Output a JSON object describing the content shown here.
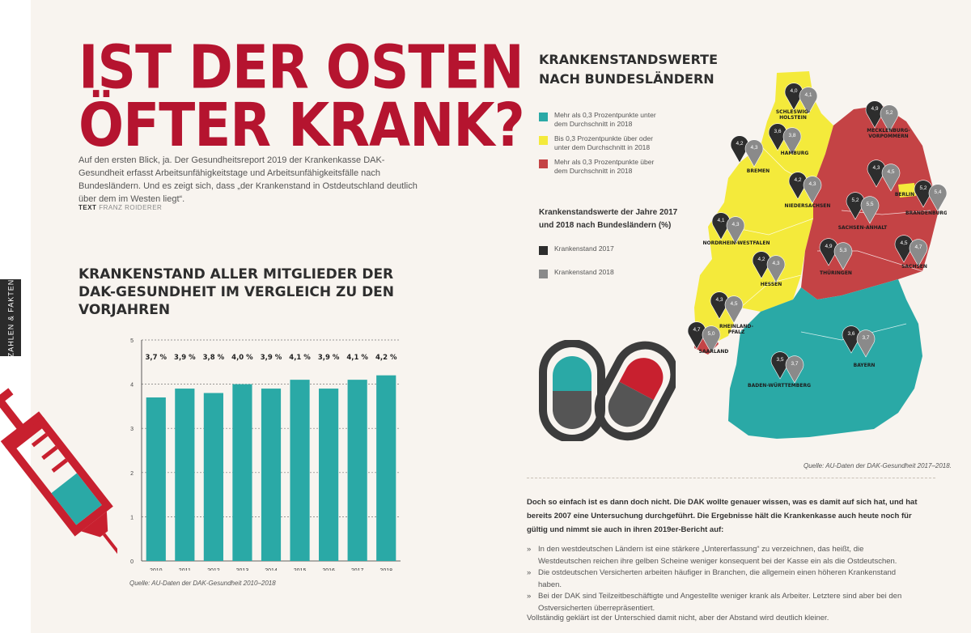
{
  "side_tab": "ZAHLEN & FAKTEN",
  "headline": {
    "line1": "IST DER OSTEN",
    "line2": "ÖFTER KRANK?"
  },
  "intro": "Auf den ersten Blick, ja. Der Gesundheitsreport 2019 der Krankenkasse DAK-Gesundheit erfasst Arbeitsunfähigkeitstage und Arbeitsunfähigkeitsfälle nach Bundesländern. Und es zeigt sich, dass „der Krankenstand in Ostdeutschland deutlich über dem im Westen liegt“.",
  "byline": {
    "label": "TEXT",
    "author": "FRANZ ROIDERER"
  },
  "bar_chart_title": "KRANKENSTAND ALLER MITGLIEDER DER DAK-GESUNDHEIT IM VERGLEICH ZU DEN VORJAHREN",
  "chart_source": "Quelle: AU-Daten der DAK-Gesundheit 2010–2018",
  "chart_data": {
    "type": "bar",
    "categories": [
      "2010",
      "2011",
      "2012",
      "2013",
      "2014",
      "2015",
      "2016",
      "2017",
      "2018"
    ],
    "values": [
      3.7,
      3.9,
      3.8,
      4.0,
      3.9,
      4.1,
      3.9,
      4.1,
      4.2
    ],
    "data_labels": [
      "3,7 %",
      "3,9 %",
      "3,8 %",
      "4,0 %",
      "3,9 %",
      "4,1 %",
      "3,9 %",
      "4,1 %",
      "4,2 %"
    ],
    "yticks": [
      "0",
      "1",
      "2",
      "3",
      "4",
      "5"
    ],
    "ylim": [
      0,
      5
    ],
    "grid": "dashed horizontal",
    "bar_color": "#2aa9a6"
  },
  "map_title": {
    "line1": "KRANKENSTANDSWERTE",
    "line2": "NACH BUNDESLÄNDERN"
  },
  "legend": [
    {
      "color": "#2aa9a6",
      "text": "Mehr als 0,3 Prozentpunkte unter dem Durchschnitt in 2018"
    },
    {
      "color": "#f4ea3b",
      "text": "Bis 0,3 Prozentpunkte über oder unter dem Durchschnitt in 2018"
    },
    {
      "color": "#c44345",
      "text": "Mehr als 0,3 Prozentpunkte über dem Durchschnitt in 2018"
    }
  ],
  "legend2_title": "Krankenstandswerte der Jahre 2017 und 2018 nach Bundesländern (%)",
  "legend2": [
    {
      "color": "#2d2d2d",
      "text": "Krankenstand 2017"
    },
    {
      "color": "#8a8a8a",
      "text": "Krankenstand 2018"
    }
  ],
  "map_source": "Quelle: AU-Daten der DAK-Gesundheit 2017–2018.",
  "states": [
    {
      "name": "SCHLESWIG-HOLSTEIN",
      "v2017": "4,0",
      "v2018": "4,1",
      "category": "yellow"
    },
    {
      "name": "MECKLENBURG-VORPOMMERN",
      "v2017": "4,9",
      "v2018": "5,2",
      "category": "red"
    },
    {
      "name": "HAMBURG",
      "v2017": "3,6",
      "v2018": "3,8",
      "category": "yellow"
    },
    {
      "name": "BREMEN",
      "v2017": "4,2",
      "v2018": "4,3",
      "category": "yellow"
    },
    {
      "name": "NIEDERSACHSEN",
      "v2017": "4,2",
      "v2018": "4,3",
      "category": "yellow"
    },
    {
      "name": "BERLIN",
      "v2017": "4,3",
      "v2018": "4,5",
      "category": "yellow"
    },
    {
      "name": "BRANDENBURG",
      "v2017": "5,2",
      "v2018": "5,4",
      "category": "red"
    },
    {
      "name": "SACHSEN-ANHALT",
      "v2017": "5,2",
      "v2018": "5,5",
      "category": "red"
    },
    {
      "name": "NORDRHEIN-WESTFALEN",
      "v2017": "4,1",
      "v2018": "4,3",
      "category": "yellow"
    },
    {
      "name": "SACHSEN",
      "v2017": "4,5",
      "v2018": "4,7",
      "category": "red"
    },
    {
      "name": "THÜRINGEN",
      "v2017": "4,9",
      "v2018": "5,3",
      "category": "red"
    },
    {
      "name": "HESSEN",
      "v2017": "4,2",
      "v2018": "4,3",
      "category": "yellow"
    },
    {
      "name": "RHEINLAND-PFALZ",
      "v2017": "4,3",
      "v2018": "4,5",
      "category": "yellow"
    },
    {
      "name": "SAARLAND",
      "v2017": "4,7",
      "v2018": "5,0",
      "category": "red"
    },
    {
      "name": "BADEN-WÜRTTEMBERG",
      "v2017": "3,5",
      "v2018": "3,7",
      "category": "teal"
    },
    {
      "name": "BAYERN",
      "v2017": "3,6",
      "v2018": "3,7",
      "category": "teal"
    }
  ],
  "body_bold": "Doch so einfach ist es dann doch nicht. Die DAK wollte genauer wissen, was es damit auf sich hat, und hat bereits 2007 eine Untersuchung durchgeführt. Die Ergebnisse hält die Krankenkasse auch heute noch für gültig und nimmt sie auch in ihren 2019er-Bericht auf:",
  "bullets": [
    "In den westdeutschen Ländern ist eine stärkere „Untererfassung“ zu verzeichnen, das heißt, die Westdeutschen reichen ihre gelben Scheine weniger konsequent bei der Kasse ein als die Ostdeutschen.",
    "Die ostdeutschen Versicherten arbeiten häufiger in Branchen, die allgemein einen höheren Krankenstand haben.",
    "Bei der DAK sind Teilzeitbeschäftigte und Angestellte weniger krank als Arbeiter. Letztere sind aber bei den Ostversicherten überrepräsentiert."
  ],
  "closing": "Vollständig geklärt ist der Unterschied damit nicht, aber der Abstand wird deutlich kleiner.",
  "colors": {
    "accent_red": "#b5142f",
    "teal": "#2aa9a6",
    "yellow": "#f4ea3b",
    "red": "#c44345",
    "dark": "#2d2d2d",
    "grey": "#8a8a8a"
  }
}
